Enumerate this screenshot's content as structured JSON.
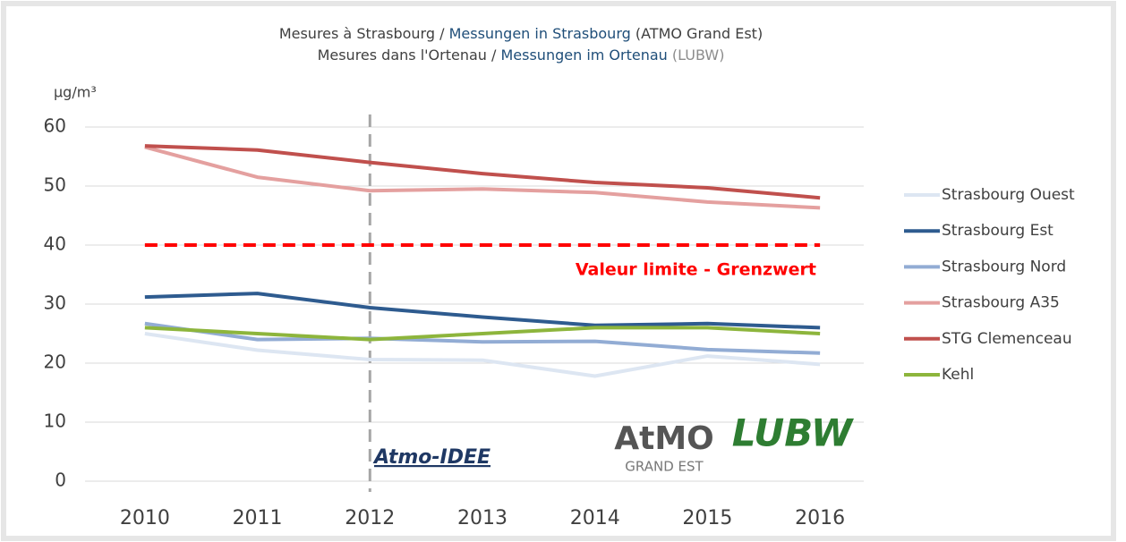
{
  "chart_data": {
    "type": "line",
    "title_lines": [
      [
        {
          "text": "Mesures à Strasbourg / ",
          "color": "#404040"
        },
        {
          "text": "Messungen in Strasbourg",
          "color": "#1f4e79"
        },
        {
          "text": " (ATMO Grand Est)",
          "color": "#404040"
        }
      ],
      [
        {
          "text": "Mesures dans l'Ortenau / ",
          "color": "#404040"
        },
        {
          "text": "Messungen im Ortenau",
          "color": "#1f4e79"
        },
        {
          "text": " (LUBW)",
          "color": "#8c8c8c"
        }
      ]
    ],
    "y_label": "µg/m³",
    "categories": [
      "2010",
      "2011",
      "2012",
      "2013",
      "2014",
      "2015",
      "2016"
    ],
    "series": [
      {
        "name": "Strasbourg Ouest",
        "color": "#dde6f2",
        "values": [
          25,
          22.2,
          20.6,
          20.5,
          17.8,
          21.2,
          19.8
        ]
      },
      {
        "name": "Strasbourg Est",
        "color": "#2e5b8f",
        "values": [
          31.2,
          31.8,
          29.4,
          27.8,
          26.4,
          26.7,
          26.0
        ]
      },
      {
        "name": "Strasbourg Nord",
        "color": "#92acd4",
        "values": [
          26.7,
          24,
          24.2,
          23.6,
          23.7,
          22.3,
          21.7
        ]
      },
      {
        "name": "Strasbourg A35",
        "color": "#e4a09f",
        "values": [
          56.6,
          51.5,
          49.2,
          49.5,
          48.9,
          47.3,
          46.3
        ]
      },
      {
        "name": "STG Clemenceau",
        "color": "#c0504d",
        "values": [
          56.8,
          56.1,
          54,
          52.1,
          50.6,
          49.7,
          48.0
        ]
      },
      {
        "name": "Kehl",
        "color": "#8db53c",
        "values": [
          26,
          25,
          24,
          25,
          26,
          26,
          25
        ]
      }
    ],
    "limit": {
      "value": 40,
      "label": "Valeur limite - Grenzwert",
      "color": "#ff0000"
    },
    "vline_at": "2012",
    "logos": [
      "Atmo-IDEE",
      "AtMO",
      "GRAND EST",
      "LUBW"
    ],
    "ylim": [
      0,
      60
    ],
    "yticks": [
      0,
      10,
      20,
      30,
      40,
      50,
      60
    ],
    "grid": true
  }
}
